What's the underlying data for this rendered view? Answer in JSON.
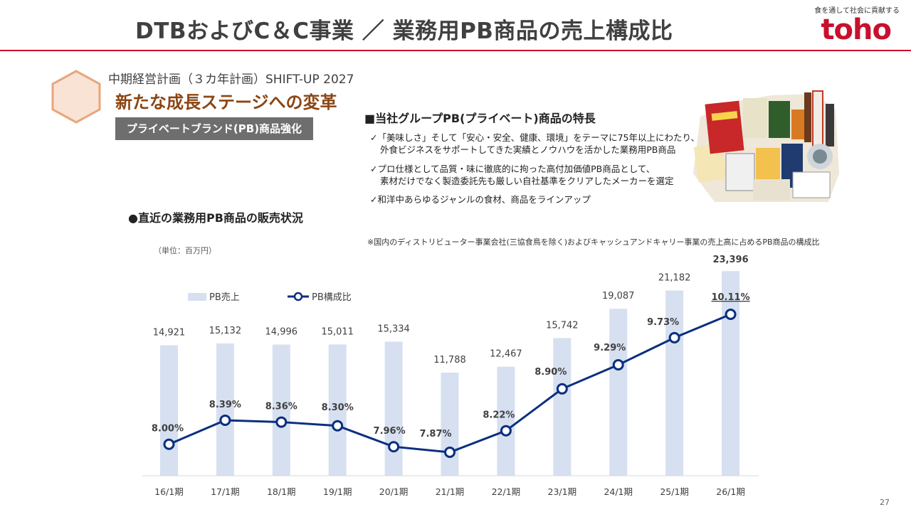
{
  "header": {
    "title": "DTBおよびC＆C事業 ／ 業務用PB商品の売上構成比",
    "tagline": "食を通して社会に貢献する",
    "logo_text": "toho"
  },
  "plan": {
    "subtitle": "中期経営計画（３カ年計画）SHIFT-UP 2027",
    "headline": "新たな成長ステージへの変革",
    "tag": "プライベートブランド(PB)商品強化"
  },
  "features": {
    "title": "■当社グループPB(プライベート)商品の特長",
    "items": [
      {
        "line1": "✓「美味しさ」そして「安心・安全、健康、環境」をテーマに75年以上にわたり、",
        "line2": "外食ビジネスをサポートしてきた実績とノウハウを活かした業務用PB商品"
      },
      {
        "line1": "✓プロ仕様として品質・味に徹底的に拘った高付加価値PB商品として、",
        "line2": "素材だけでなく製造委託先も厳しい自社基準をクリアしたメーカーを選定"
      },
      {
        "line1": "✓和洋中あらゆるジャンルの食材、商品をラインアップ",
        "line2": ""
      }
    ]
  },
  "section_title": "●直近の業務用PB商品の販売状況",
  "footnote": "※国内のディストリビューター事業会社(三協食鳥を除く)およびキャッシュアンドキャリー事業の売上高に占めるPB商品の構成比",
  "unit_label": "（単位：百万円）",
  "page_number": "27",
  "colors": {
    "accent": "#c8102e",
    "bar": "#d6e0f0",
    "line": "#0a2f7f",
    "headline": "#8b4513"
  },
  "chart_data": {
    "type": "bar",
    "title": "",
    "categories": [
      "16/1期",
      "17/1期",
      "18/1期",
      "19/1期",
      "20/1期",
      "21/1期",
      "22/1期",
      "23/1期",
      "24/1期",
      "25/1期",
      "26/1期"
    ],
    "series": [
      {
        "name": "PB売上",
        "type": "bar",
        "values": [
          14921,
          15132,
          14996,
          15011,
          15334,
          11788,
          12467,
          15742,
          19087,
          21182,
          23396
        ],
        "labels": [
          "14,921",
          "15,132",
          "14,996",
          "15,011",
          "15,334",
          "11,788",
          "12,467",
          "15,742",
          "19,087",
          "21,182",
          "23,396"
        ]
      },
      {
        "name": "PB構成比",
        "type": "line",
        "values": [
          8.0,
          8.39,
          8.36,
          8.3,
          7.96,
          7.87,
          8.22,
          8.9,
          9.29,
          9.73,
          10.11
        ],
        "labels": [
          "8.00%",
          "8.39%",
          "8.36%",
          "8.30%",
          "7.96%",
          "7.87%",
          "8.22%",
          "8.90%",
          "9.29%",
          "9.73%",
          "10.11%"
        ]
      }
    ],
    "ylim_bar": [
      0,
      25000
    ],
    "ylim_line": [
      6.5,
      10.5
    ],
    "legend": "top-left",
    "grid": false
  }
}
